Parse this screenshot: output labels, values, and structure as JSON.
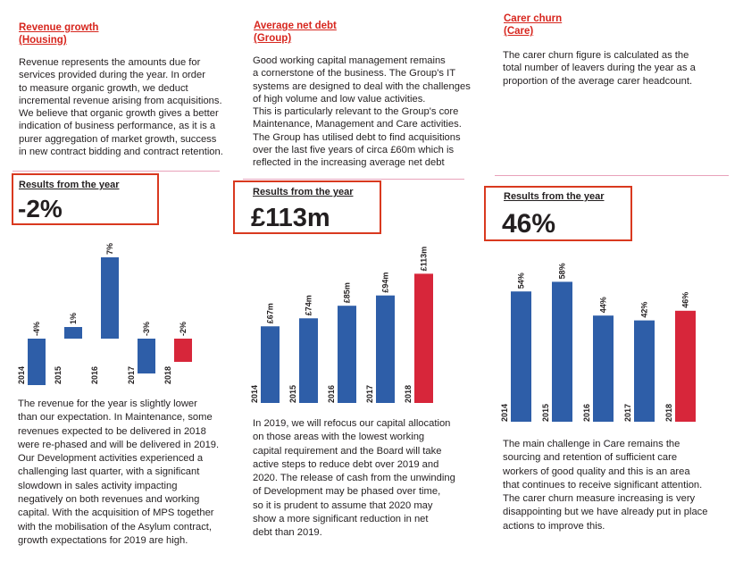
{
  "columns": [
    {
      "title": "Revenue growth\n(Housing)",
      "intro": "Revenue represents the amounts due for\nservices provided during the year. In order\nto measure organic growth, we deduct\nincremental revenue arising from acquisitions.\nWe believe that organic growth gives a better\nindication of business performance, as it is a\npurer aggregation of market growth, success\nin new contract bidding and contract retention.",
      "results_label": "Results from the year",
      "results_value": "-2%",
      "outro": "The revenue for the year is slightly lower\nthan our expectation. In Maintenance, some\nrevenues expected to be delivered in 2018\nwere re-phased and will be delivered in 2019.\nOur Development activities experienced a\nchallenging last quarter, with a significant\nslowdown in sales activity impacting\nnegatively on both revenues and working\ncapital. With the acquisition of MPS together\nwith the mobilisation of the Asylum contract,\ngrowth expectations for 2019 are high."
    },
    {
      "title": "Average net debt\n(Group)",
      "intro": "Good working capital management remains\na cornerstone of the business. The Group's IT\nsystems are designed to deal with the challenges\nof high volume and low value activities.\nThis is particularly relevant to the Group's core\nMaintenance, Management and Care activities.\nThe Group has utilised debt to find acquisitions\nover the last five years of circa £60m which is\nreflected in the increasing average net debt",
      "results_label": "Results from the year",
      "results_value": "£113m",
      "outro": "In 2019, we will refocus our capital allocation\non those areas with the lowest working\ncapital requirement and the Board will take\nactive steps to reduce debt over 2019 and\n2020. The release of cash from the unwinding\nof Development may be phased over time,\nso it is prudent to assume that 2020 may\nshow a more significant reduction in net\ndebt than 2019."
    },
    {
      "title": "Carer churn\n(Care)",
      "intro": "The carer churn figure is calculated as the\ntotal number of leavers during the year as a\nproportion of the average carer headcount.",
      "results_label": "Results from the year",
      "results_value": "46%",
      "outro": "The main challenge in Care remains the\nsourcing and retention of sufficient care\nworkers of good quality and this is an area\nthat continues to receive significant attention.\nThe carer churn measure increasing is very\ndisappointing but we have already put in place\nactions to improve this."
    }
  ],
  "colors": {
    "blue": "#2e5ea8",
    "red": "#d7263a",
    "title_red": "#d7261e",
    "box": "#d9391f",
    "divider": "#e8a2ba"
  },
  "chart_data": [
    {
      "type": "bar",
      "categories": [
        "2014",
        "2015",
        "2016",
        "2017",
        "2018"
      ],
      "values": [
        -4,
        1,
        7,
        -3,
        -2
      ],
      "labels": [
        "-4%",
        "1%",
        "7%",
        "-3%",
        "-2%"
      ],
      "highlight": "2018"
    },
    {
      "type": "bar",
      "categories": [
        "2014",
        "2015",
        "2016",
        "2017",
        "2018"
      ],
      "values": [
        67,
        74,
        85,
        94,
        113
      ],
      "labels": [
        "£67m",
        "£74m",
        "£85m",
        "£94m",
        "£113m"
      ],
      "highlight": "2018"
    },
    {
      "type": "bar",
      "categories": [
        "2014",
        "2015",
        "2016",
        "2017",
        "2018"
      ],
      "values": [
        54,
        58,
        44,
        42,
        46
      ],
      "labels": [
        "54%",
        "58%",
        "44%",
        "42%",
        "46%"
      ],
      "highlight": "2018"
    }
  ]
}
